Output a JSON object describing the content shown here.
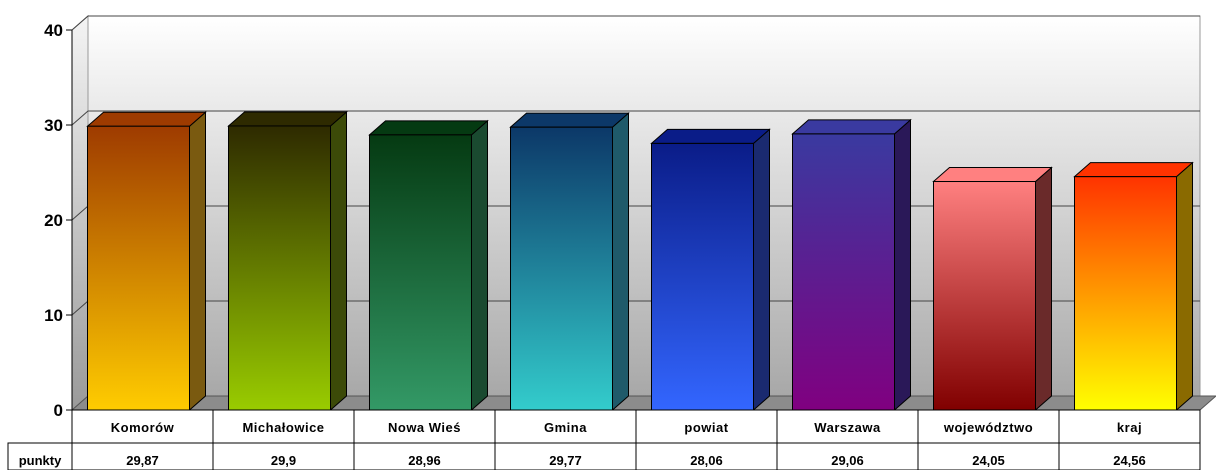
{
  "chart_data": {
    "type": "bar",
    "categories": [
      "Komorów",
      "Michałowice",
      "Nowa Wieś",
      "Gmina",
      "powiat",
      "Warszawa",
      "województwo",
      "kraj"
    ],
    "series": [
      {
        "name": "punkty",
        "values": [
          29.87,
          29.9,
          28.96,
          29.77,
          28.06,
          29.06,
          24.05,
          24.56
        ]
      }
    ],
    "value_labels": [
      "29,87",
      "29,9",
      "28,96",
      "29,77",
      "28,06",
      "29,06",
      "24,05",
      "24,56"
    ],
    "ylim": [
      0,
      40
    ],
    "yticks": [
      0,
      10,
      20,
      30,
      40
    ],
    "grid": true,
    "style": "3d-bar-with-data-table",
    "bar_gradients": [
      {
        "top": "#9e3b00",
        "bottom": "#ffcc00",
        "side": "#7a5a10"
      },
      {
        "top": "#2e2a00",
        "bottom": "#99cc00",
        "side": "#3c4a08"
      },
      {
        "top": "#053a12",
        "bottom": "#339966",
        "side": "#1a4a30"
      },
      {
        "top": "#0c3868",
        "bottom": "#33cccc",
        "side": "#1f5a6a"
      },
      {
        "top": "#0a1c88",
        "bottom": "#3366ff",
        "side": "#1a2a70"
      },
      {
        "top": "#3a3aa0",
        "bottom": "#800080",
        "side": "#2a1858"
      },
      {
        "top": "#ff8080",
        "bottom": "#800000",
        "side": "#6a2a2a"
      },
      {
        "top": "#ff3300",
        "bottom": "#ffff00",
        "side": "#8a6a00"
      }
    ]
  }
}
